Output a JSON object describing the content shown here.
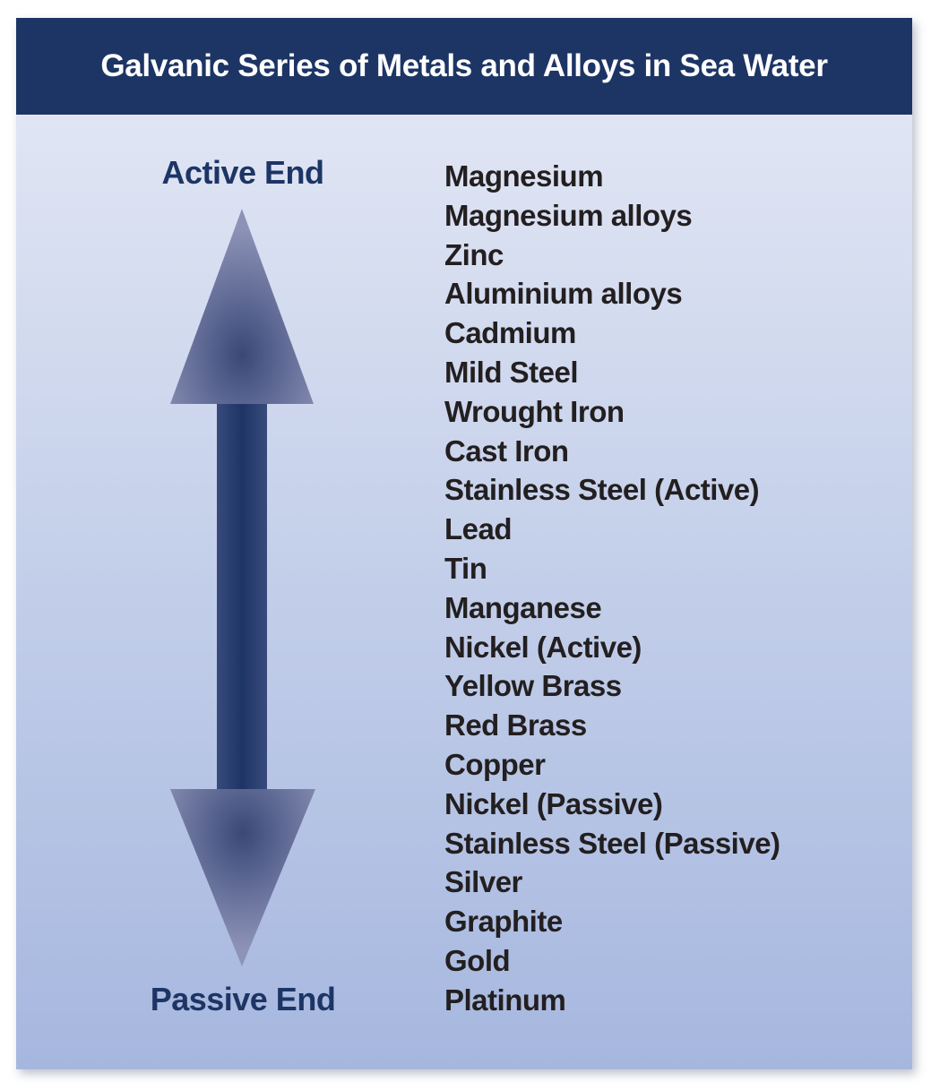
{
  "title": "Galvanic Series of Metals and Alloys in Sea Water",
  "scale": {
    "top_label": "Active End",
    "bottom_label": "Passive End"
  },
  "metals": [
    "Magnesium",
    "Magnesium alloys",
    "Zinc",
    "Aluminium alloys",
    "Cadmium",
    "Mild Steel",
    "Wrought Iron",
    "Cast Iron",
    "Stainless Steel (Active)",
    "Lead",
    "Tin",
    "Manganese",
    "Nickel (Active)",
    "Yellow Brass",
    "Red Brass",
    "Copper",
    "Nickel (Passive)",
    "Stainless Steel (Passive)",
    "Silver",
    "Graphite",
    "Gold",
    "Platinum"
  ],
  "colors": {
    "header_bg": "#1d3565",
    "label_text": "#1d3565",
    "list_text": "#231f20",
    "arrow_dark": "#1d3565",
    "arrow_light": "#8d93b7"
  },
  "icons": {
    "arrow": "double-headed-vertical-arrow"
  }
}
